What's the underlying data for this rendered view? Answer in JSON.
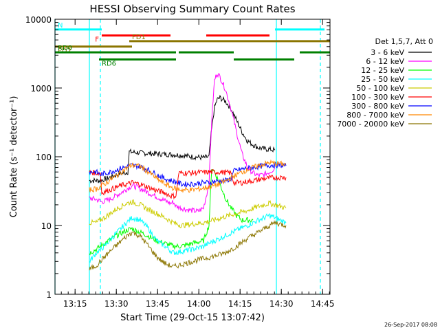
{
  "chart_data": {
    "type": "line",
    "title": "HESSI Observing Summary Count Rates",
    "xlabel": "Start Time (29-Oct-15 13:07:42)",
    "ylabel": "Count Rate (s⁻¹ detector⁻¹)",
    "footer": "26-Sep-2017 08:08",
    "xlim_minutes": [
      0,
      100
    ],
    "ylim": [
      1,
      10000
    ],
    "y_scale": "log",
    "x_ticks": [
      {
        "m": 7.3,
        "label": "13:15"
      },
      {
        "m": 22.3,
        "label": "13:30"
      },
      {
        "m": 37.3,
        "label": "13:45"
      },
      {
        "m": 52.3,
        "label": "14:00"
      },
      {
        "m": 67.3,
        "label": "14:15"
      },
      {
        "m": 82.3,
        "label": "14:30"
      },
      {
        "m": 97.3,
        "label": "14:45"
      }
    ],
    "y_ticks": [
      {
        "v": 1,
        "label": "1"
      },
      {
        "v": 10,
        "label": "10"
      },
      {
        "v": 100,
        "label": "100"
      },
      {
        "v": 1000,
        "label": "1000"
      },
      {
        "v": 10000,
        "label": "10000"
      }
    ],
    "legend": {
      "title": "Det 1,5,7, Att 0",
      "placement": "right",
      "entries": [
        {
          "label": "3 - 6 keV",
          "color": "#000000"
        },
        {
          "label": "6 - 12 keV",
          "color": "#ff00ff"
        },
        {
          "label": "12 - 25 keV",
          "color": "#00ff00"
        },
        {
          "label": "25 - 50 keV",
          "color": "#00ffff"
        },
        {
          "label": "50 - 100 keV",
          "color": "#cccc00"
        },
        {
          "label": "100 - 300 keV",
          "color": "#ff0000"
        },
        {
          "label": "300 - 800 keV",
          "color": "#0000ff"
        },
        {
          "label": "800 - 7000 keV",
          "color": "#ff8800"
        },
        {
          "label": "7000 - 20000 keV",
          "color": "#8b7500"
        }
      ]
    },
    "flag_bars": [
      {
        "label": "N",
        "color": "#00ffff",
        "y": 7100,
        "segments": [
          [
            0,
            17
          ],
          [
            80,
            98
          ]
        ]
      },
      {
        "label": "F",
        "color": "#ff0000",
        "y": 5800,
        "segments": [
          [
            17,
            42
          ],
          [
            55,
            78
          ]
        ]
      },
      {
        "label": "FD1",
        "color": "#8b7500",
        "y": 4800,
        "segments": [
          [
            27,
            100
          ]
        ]
      },
      {
        "label": "FD2",
        "color": "#8b7500",
        "y": 4000,
        "segments": [
          [
            0,
            28
          ]
        ]
      },
      {
        "label": "RD0",
        "color": "#008000",
        "y": 3300,
        "segments": [
          [
            0,
            44
          ],
          [
            45,
            65
          ],
          [
            89,
            100
          ]
        ]
      },
      {
        "label": "RD6",
        "color": "#008000",
        "y": 2600,
        "segments": [
          [
            16,
            44
          ],
          [
            65,
            87
          ]
        ]
      }
    ],
    "vlines": [
      {
        "m": 0,
        "color": "#00ffff",
        "style": "solid"
      },
      {
        "m": 12.5,
        "color": "#00ffff",
        "style": "solid"
      },
      {
        "m": 16.5,
        "color": "#00ffff",
        "style": "dashed"
      },
      {
        "m": 80.5,
        "color": "#00ffff",
        "style": "solid"
      },
      {
        "m": 96.5,
        "color": "#00ffff",
        "style": "dashed"
      }
    ],
    "series": [
      {
        "name": "3 - 6 keV",
        "color": "#000000",
        "segments": [
          [
            [
              12.5,
              45
            ],
            [
              15,
              45
            ],
            [
              16.5,
              45
            ],
            [
              20,
              50
            ],
            [
              23,
              56
            ],
            [
              26.5,
              60
            ],
            [
              27,
              118
            ],
            [
              30,
              115
            ],
            [
              34,
              112
            ],
            [
              38,
              110
            ],
            [
              42,
              108
            ],
            [
              46,
              105
            ],
            [
              50,
              100
            ],
            [
              54,
              97
            ],
            [
              56,
              100
            ],
            [
              57,
              260
            ],
            [
              58,
              520
            ],
            [
              59,
              680
            ],
            [
              60,
              720
            ],
            [
              62,
              640
            ],
            [
              64,
              500
            ],
            [
              66,
              340
            ],
            [
              68,
              230
            ],
            [
              70,
              170
            ],
            [
              72,
              150
            ],
            [
              74,
              135
            ],
            [
              76,
              130
            ],
            [
              78,
              128
            ],
            [
              80,
              125
            ]
          ]
        ]
      },
      {
        "name": "6 - 12 keV",
        "color": "#ff00ff",
        "segments": [
          [
            [
              12.5,
              25
            ],
            [
              15,
              24
            ],
            [
              17,
              22
            ],
            [
              20,
              24
            ],
            [
              24,
              30
            ],
            [
              28,
              38
            ],
            [
              30,
              36
            ],
            [
              34,
              30
            ],
            [
              38,
              25
            ],
            [
              42,
              21
            ],
            [
              43,
              22
            ],
            [
              44,
              19
            ],
            [
              48,
              17
            ],
            [
              52,
              16
            ],
            [
              54,
              18
            ],
            [
              56,
              40
            ],
            [
              57,
              350
            ],
            [
              58,
              1300
            ],
            [
              59,
              1650
            ],
            [
              60,
              1450
            ],
            [
              62,
              950
            ],
            [
              64,
              500
            ],
            [
              66,
              230
            ],
            [
              68,
              110
            ],
            [
              70,
              70
            ],
            [
              72,
              58
            ],
            [
              74,
              53
            ],
            [
              76,
              55
            ],
            [
              78,
              60
            ],
            [
              80,
              68
            ]
          ]
        ]
      },
      {
        "name": "12 - 25 keV",
        "color": "#00ff00",
        "segments": [
          [
            [
              12.5,
              4
            ],
            [
              15,
              4.5
            ],
            [
              18,
              5.5
            ],
            [
              22,
              7
            ],
            [
              26,
              8.5
            ],
            [
              28,
              9
            ],
            [
              31,
              8
            ],
            [
              34,
              7
            ],
            [
              37,
              6
            ],
            [
              40,
              5.5
            ],
            [
              43,
              5
            ],
            [
              46,
              5
            ],
            [
              50,
              5.5
            ],
            [
              54,
              6
            ],
            [
              56,
              10
            ],
            [
              57,
              70
            ],
            [
              58,
              60
            ],
            [
              60,
              40
            ],
            [
              62,
              25
            ],
            [
              64,
              18
            ],
            [
              66,
              14
            ],
            [
              68,
              12
            ],
            [
              70,
              12
            ],
            [
              72,
              12
            ]
          ]
        ]
      },
      {
        "name": "25 - 50 keV",
        "color": "#00ffff",
        "segments": [
          [
            [
              12.5,
              3
            ],
            [
              15,
              4
            ],
            [
              18,
              5
            ],
            [
              22,
              7.5
            ],
            [
              26,
              11
            ],
            [
              28,
              13
            ],
            [
              31,
              12
            ],
            [
              34,
              9
            ],
            [
              37,
              6
            ],
            [
              40,
              5
            ],
            [
              43,
              4
            ],
            [
              46,
              4.2
            ],
            [
              50,
              4.5
            ],
            [
              54,
              5
            ],
            [
              56,
              5.5
            ],
            [
              58,
              6
            ],
            [
              60,
              6.5
            ],
            [
              63,
              7.5
            ],
            [
              66,
              8.5
            ],
            [
              70,
              10
            ],
            [
              74,
              12
            ],
            [
              78,
              14
            ],
            [
              80,
              13
            ],
            [
              84,
              11
            ]
          ]
        ]
      },
      {
        "name": "50 - 100 keV",
        "color": "#cccc00",
        "segments": [
          [
            [
              12.5,
              11
            ],
            [
              15,
              11
            ],
            [
              18,
              13
            ],
            [
              22,
              17
            ],
            [
              26,
              21
            ],
            [
              28,
              22
            ],
            [
              31,
              20
            ],
            [
              34,
              17
            ],
            [
              37,
              15
            ],
            [
              40,
              13
            ],
            [
              43,
              11
            ],
            [
              46,
              10
            ],
            [
              50,
              10.5
            ],
            [
              54,
              11
            ],
            [
              58,
              12
            ],
            [
              62,
              13.5
            ],
            [
              66,
              15
            ],
            [
              70,
              16.5
            ],
            [
              74,
              19
            ],
            [
              78,
              21
            ],
            [
              80,
              20
            ],
            [
              84,
              18
            ]
          ]
        ]
      },
      {
        "name": "100 - 300 keV",
        "color": "#ff0000",
        "segments": [
          [
            [
              12.5,
              60
            ],
            [
              15,
              58
            ],
            [
              16.5,
              58
            ],
            [
              17,
              30
            ],
            [
              20,
              33
            ],
            [
              24,
              38
            ],
            [
              28,
              42
            ],
            [
              31,
              40
            ],
            [
              34,
              36
            ],
            [
              37,
              32
            ],
            [
              40,
              30
            ],
            [
              42,
              27
            ],
            [
              44,
              27
            ],
            [
              45,
              58
            ],
            [
              48,
              58
            ],
            [
              52,
              59
            ],
            [
              56,
              60
            ],
            [
              60,
              60
            ],
            [
              64,
              58
            ],
            [
              65,
              42
            ],
            [
              68,
              42
            ],
            [
              72,
              45
            ],
            [
              76,
              48
            ],
            [
              80,
              50
            ],
            [
              84,
              50
            ]
          ]
        ]
      },
      {
        "name": "300 - 800 keV",
        "color": "#0000ff",
        "segments": [
          [
            [
              12.5,
              60
            ],
            [
              15,
              60
            ],
            [
              16.5,
              55
            ],
            [
              20,
              60
            ],
            [
              24,
              68
            ],
            [
              28,
              75
            ],
            [
              31,
              72
            ],
            [
              34,
              64
            ],
            [
              37,
              55
            ],
            [
              40,
              48
            ],
            [
              43,
              44
            ],
            [
              46,
              40
            ],
            [
              50,
              40
            ],
            [
              54,
              42
            ],
            [
              56,
              42
            ],
            [
              58,
              44
            ],
            [
              62,
              45
            ],
            [
              64,
              48
            ],
            [
              65,
              62
            ],
            [
              68,
              66
            ],
            [
              72,
              70
            ],
            [
              76,
              74
            ],
            [
              80,
              76
            ],
            [
              84,
              74
            ]
          ]
        ]
      },
      {
        "name": "800 - 7000 keV",
        "color": "#ff8800",
        "segments": [
          [
            [
              12.5,
              33
            ],
            [
              15,
              34
            ],
            [
              18,
              40
            ],
            [
              22,
              52
            ],
            [
              26,
              68
            ],
            [
              28,
              76
            ],
            [
              31,
              72
            ],
            [
              34,
              60
            ],
            [
              37,
              48
            ],
            [
              40,
              40
            ],
            [
              43,
              35
            ],
            [
              46,
              33
            ],
            [
              50,
              33
            ],
            [
              54,
              35
            ],
            [
              58,
              38
            ],
            [
              62,
              44
            ],
            [
              65,
              52
            ],
            [
              68,
              60
            ],
            [
              72,
              70
            ],
            [
              76,
              78
            ],
            [
              78,
              82
            ],
            [
              80,
              80
            ],
            [
              84,
              78
            ]
          ]
        ]
      },
      {
        "name": "7000 - 20000 keV",
        "color": "#8b7500",
        "segments": [
          [
            [
              12.5,
              2.3
            ],
            [
              15,
              2.6
            ],
            [
              18,
              3.5
            ],
            [
              22,
              5
            ],
            [
              26,
              7
            ],
            [
              28,
              8
            ],
            [
              31,
              7
            ],
            [
              34,
              5
            ],
            [
              37,
              3.5
            ],
            [
              40,
              2.8
            ],
            [
              43,
              2.5
            ],
            [
              46,
              2.7
            ],
            [
              50,
              3
            ],
            [
              54,
              3.3
            ],
            [
              58,
              3.6
            ],
            [
              62,
              4
            ],
            [
              66,
              5
            ],
            [
              70,
              6.5
            ],
            [
              74,
              8
            ],
            [
              78,
              10
            ],
            [
              80,
              11
            ],
            [
              84,
              10
            ]
          ]
        ]
      }
    ]
  }
}
